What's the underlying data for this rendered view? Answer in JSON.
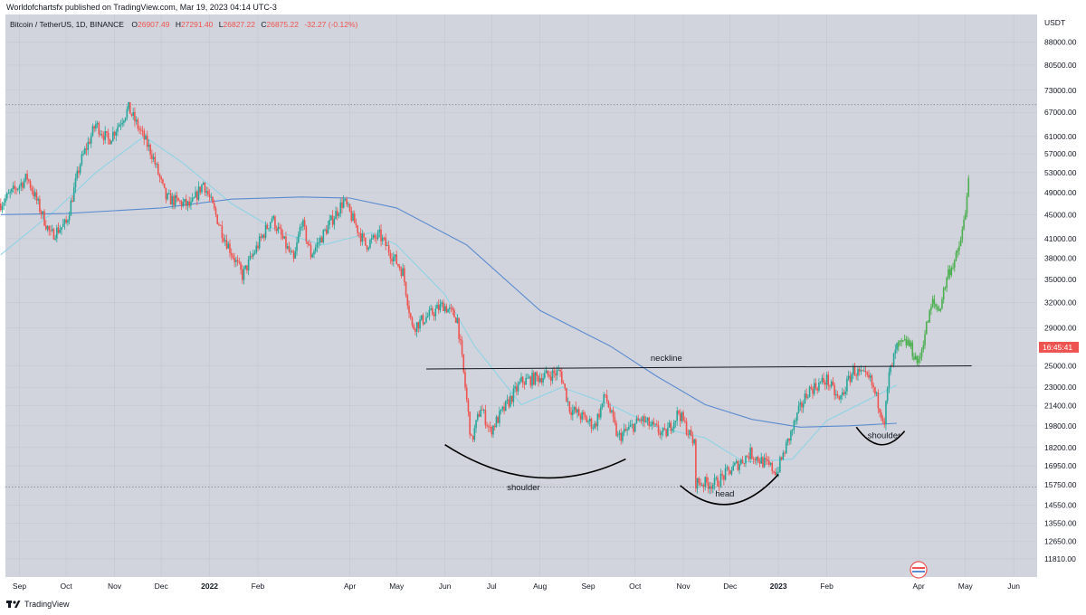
{
  "header": {
    "publisher_line": "Worldofchartsfx published on TradingView.com, Mar 19, 2023 04:14 UTC-3"
  },
  "legend": {
    "symbol": "Bitcoin / TetherUS, 1D, BINANCE",
    "open_label": "O",
    "open": "26907.49",
    "high_label": "H",
    "high": "27291.40",
    "low_label": "L",
    "low": "26827.22",
    "close_label": "C",
    "close": "26875.22",
    "change": "-32.27 (-0.12%)"
  },
  "price_axis": {
    "currency": "USDT",
    "last_price_tag": "16:45:41"
  },
  "footer": {
    "brand": "TradingView"
  },
  "colors": {
    "up": "#26a69a",
    "down": "#ef5350",
    "projection": "#4caf50",
    "ma_fast": "#8fd3e6",
    "ma_slow": "#5b8bd0",
    "background": "#d1d4dc"
  },
  "chart_data": {
    "type": "candlestick",
    "y_scale": "log",
    "ylim": [
      11000,
      98000
    ],
    "y_ticks": [
      88000,
      80500,
      73000,
      67000,
      61000,
      57000,
      53000,
      49000,
      45000,
      41000,
      38000,
      35000,
      32000,
      29000,
      25000,
      23000,
      21400,
      19800,
      18200,
      16950,
      15750,
      14550,
      13550,
      12650,
      11810
    ],
    "y_tick_labels": [
      "88000.00",
      "80500.00",
      "73000.00",
      "67000.00",
      "61000.00",
      "57000.00",
      "53000.00",
      "49000.00",
      "45000.00",
      "41000.00",
      "38000.00",
      "35000.00",
      "32000.00",
      "29000.00",
      "25000.00",
      "23000.00",
      "21400.00",
      "19800.00",
      "18200.00",
      "16950.00",
      "15750.00",
      "14550.00",
      "13550.00",
      "12650.00",
      "11810.00"
    ],
    "x_labels": [
      "Sep",
      "Oct",
      "Nov",
      "Dec",
      "2022",
      "Feb",
      "Apr",
      "May",
      "Jun",
      "Jul",
      "Aug",
      "Sep",
      "Oct",
      "Nov",
      "Dec",
      "2023",
      "Feb",
      "Apr",
      "May",
      "Jun"
    ],
    "x_dates": [
      "2021-09-01",
      "2021-10-01",
      "2021-11-01",
      "2021-12-01",
      "2022-01-01",
      "2022-02-01",
      "2022-04-01",
      "2022-05-01",
      "2022-06-01",
      "2022-07-01",
      "2022-08-01",
      "2022-09-01",
      "2022-10-01",
      "2022-11-01",
      "2022-12-01",
      "2023-01-01",
      "2023-02-01",
      "2023-04-01",
      "2023-05-01",
      "2023-06-01"
    ],
    "close_path": [
      [
        "2021-08-20",
        47000
      ],
      [
        "2021-09-06",
        52000
      ],
      [
        "2021-09-21",
        41500
      ],
      [
        "2021-10-01",
        43500
      ],
      [
        "2021-10-10",
        55000
      ],
      [
        "2021-10-20",
        64000
      ],
      [
        "2021-10-28",
        60000
      ],
      [
        "2021-11-10",
        68000
      ],
      [
        "2021-11-25",
        57000
      ],
      [
        "2021-12-04",
        48000
      ],
      [
        "2021-12-20",
        46500
      ],
      [
        "2021-12-28",
        51000
      ],
      [
        "2022-01-10",
        41500
      ],
      [
        "2022-01-22",
        35500
      ],
      [
        "2022-02-10",
        44500
      ],
      [
        "2022-02-24",
        37500
      ],
      [
        "2022-03-01",
        44000
      ],
      [
        "2022-03-07",
        38500
      ],
      [
        "2022-03-28",
        47500
      ],
      [
        "2022-04-11",
        40000
      ],
      [
        "2022-04-20",
        41500
      ],
      [
        "2022-05-05",
        36000
      ],
      [
        "2022-05-11",
        29000
      ],
      [
        "2022-05-31",
        31700
      ],
      [
        "2022-06-09",
        30000
      ],
      [
        "2022-06-18",
        18600
      ],
      [
        "2022-06-24",
        21300
      ],
      [
        "2022-06-30",
        19400
      ],
      [
        "2022-07-20",
        23500
      ],
      [
        "2022-07-28",
        23800
      ],
      [
        "2022-08-14",
        24400
      ],
      [
        "2022-08-20",
        21200
      ],
      [
        "2022-09-05",
        19800
      ],
      [
        "2022-09-12",
        22300
      ],
      [
        "2022-09-20",
        18900
      ],
      [
        "2022-10-05",
        20300
      ],
      [
        "2022-10-20",
        19100
      ],
      [
        "2022-10-29",
        20900
      ],
      [
        "2022-11-08",
        18400
      ],
      [
        "2022-11-09",
        15900
      ],
      [
        "2022-11-21",
        15800
      ],
      [
        "2022-12-14",
        17800
      ],
      [
        "2022-12-31",
        16550
      ],
      [
        "2023-01-14",
        20900
      ],
      [
        "2023-01-20",
        22700
      ],
      [
        "2023-02-01",
        23700
      ],
      [
        "2023-02-09",
        21800
      ],
      [
        "2023-02-18",
        24600
      ],
      [
        "2023-03-01",
        23600
      ],
      [
        "2023-03-10",
        20200
      ],
      [
        "2023-03-13",
        24100
      ],
      [
        "2023-03-18",
        26900
      ]
    ],
    "projection_path": [
      [
        "2023-03-18",
        26900
      ],
      [
        "2023-03-25",
        27400
      ],
      [
        "2023-04-01",
        25200
      ],
      [
        "2023-04-05",
        28500
      ],
      [
        "2023-04-10",
        32000
      ],
      [
        "2023-04-14",
        31000
      ],
      [
        "2023-04-20",
        36000
      ],
      [
        "2023-04-26",
        38500
      ],
      [
        "2023-05-01",
        45000
      ],
      [
        "2023-05-03",
        53000
      ]
    ],
    "series": [
      {
        "name": "MA fast",
        "values": [
          [
            "2021-08-20",
            38500
          ],
          [
            "2021-09-25",
            46000
          ],
          [
            "2021-10-20",
            53000
          ],
          [
            "2021-11-20",
            61000
          ],
          [
            "2021-12-15",
            55000
          ],
          [
            "2022-01-15",
            47000
          ],
          [
            "2022-02-15",
            42000
          ],
          [
            "2022-03-15",
            40000
          ],
          [
            "2022-04-15",
            42000
          ],
          [
            "2022-05-01",
            40000
          ],
          [
            "2022-06-01",
            33000
          ],
          [
            "2022-06-20",
            27000
          ],
          [
            "2022-07-20",
            21500
          ],
          [
            "2022-08-15",
            23000
          ],
          [
            "2022-09-15",
            21500
          ],
          [
            "2022-10-15",
            19700
          ],
          [
            "2022-11-15",
            18900
          ],
          [
            "2022-12-10",
            17200
          ],
          [
            "2023-01-10",
            17400
          ],
          [
            "2023-02-01",
            20200
          ],
          [
            "2023-03-01",
            22000
          ],
          [
            "2023-03-18",
            23200
          ]
        ]
      },
      {
        "name": "MA slow",
        "values": [
          [
            "2021-08-20",
            45000
          ],
          [
            "2021-10-01",
            45200
          ],
          [
            "2021-12-01",
            46200
          ],
          [
            "2022-01-15",
            47800
          ],
          [
            "2022-03-01",
            48200
          ],
          [
            "2022-04-01",
            48000
          ],
          [
            "2022-05-01",
            46200
          ],
          [
            "2022-06-15",
            40000
          ],
          [
            "2022-08-01",
            31000
          ],
          [
            "2022-09-15",
            27000
          ],
          [
            "2022-10-15",
            24000
          ],
          [
            "2022-11-15",
            21500
          ],
          [
            "2022-12-15",
            20300
          ],
          [
            "2023-01-15",
            19700
          ],
          [
            "2023-02-15",
            19800
          ],
          [
            "2023-03-18",
            20000
          ]
        ]
      }
    ],
    "horizontal_levels": [
      {
        "price": 69000,
        "style": "dotted"
      },
      {
        "price": 15600,
        "style": "dotted"
      }
    ],
    "annotations": [
      {
        "text": "neckline",
        "type": "line",
        "from": [
          "2022-05-20",
          24700
        ],
        "to": [
          "2023-05-05",
          25000
        ]
      },
      {
        "text": "shoulder",
        "type": "arc",
        "from": [
          "2022-06-01",
          18400
        ],
        "to": [
          "2022-09-25",
          17400
        ],
        "depth": 16200
      },
      {
        "text": "head",
        "type": "arc",
        "from": [
          "2022-10-30",
          15700
        ],
        "to": [
          "2023-01-01",
          16400
        ],
        "depth": 14600
      },
      {
        "text": "shoulder",
        "type": "arc",
        "from": [
          "2023-02-20",
          19700
        ],
        "to": [
          "2023-03-23",
          19400
        ],
        "depth": 18400
      }
    ]
  }
}
